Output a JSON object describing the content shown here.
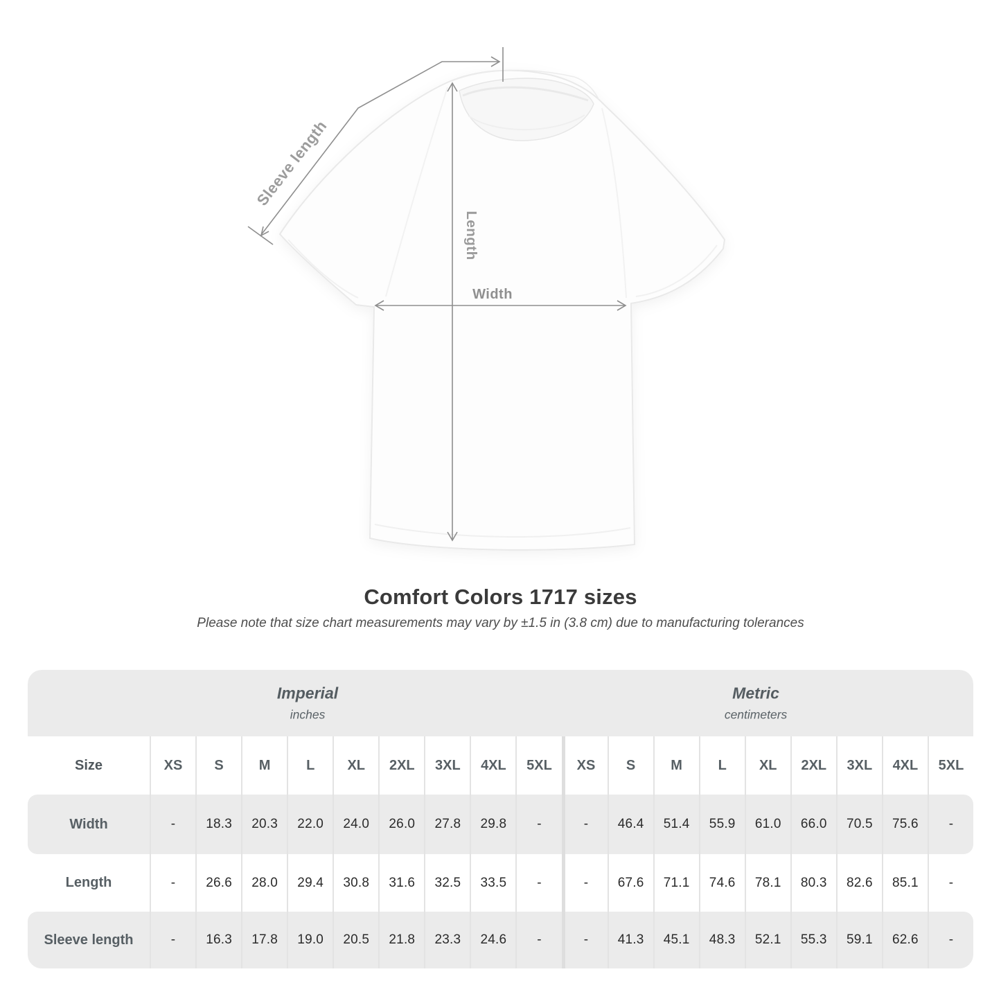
{
  "heading": {
    "title": "Comfort Colors 1717 sizes",
    "subtitle": "Please note that size chart measurements may vary by ±1.5 in (3.8 cm) due to manufacturing tolerances"
  },
  "diagram": {
    "sleeve_label": "Sleeve length",
    "length_label": "Length",
    "width_label": "Width"
  },
  "table": {
    "sections": [
      {
        "title": "Imperial",
        "unit": "inches"
      },
      {
        "title": "Metric",
        "unit": "centimeters"
      }
    ],
    "corner_label": "Size",
    "sizes": [
      "XS",
      "S",
      "M",
      "L",
      "XL",
      "2XL",
      "3XL",
      "4XL",
      "5XL"
    ],
    "rows": [
      {
        "label": "Width",
        "imperial": [
          "-",
          "18.3",
          "20.3",
          "22.0",
          "24.0",
          "26.0",
          "27.8",
          "29.8",
          "-"
        ],
        "metric": [
          "-",
          "46.4",
          "51.4",
          "55.9",
          "61.0",
          "66.0",
          "70.5",
          "75.6",
          "-"
        ]
      },
      {
        "label": "Length",
        "imperial": [
          "-",
          "26.6",
          "28.0",
          "29.4",
          "30.8",
          "31.6",
          "32.5",
          "33.5",
          "-"
        ],
        "metric": [
          "-",
          "67.6",
          "71.1",
          "74.6",
          "78.1",
          "80.3",
          "82.6",
          "85.1",
          "-"
        ]
      },
      {
        "label": "Sleeve length",
        "imperial": [
          "-",
          "16.3",
          "17.8",
          "19.0",
          "20.5",
          "21.8",
          "23.3",
          "24.6",
          "-"
        ],
        "metric": [
          "-",
          "41.3",
          "45.1",
          "48.3",
          "52.1",
          "55.3",
          "59.1",
          "62.6",
          "-"
        ]
      }
    ]
  },
  "colors": {
    "stripe": "#ebebeb",
    "separator": "#e3e3e3",
    "measure_line": "#8e8e8e",
    "diagram_label": "#9a9a9a",
    "header_text": "#575f64",
    "value_text": "#2b2b2b",
    "title_text": "#3a3a3a"
  }
}
